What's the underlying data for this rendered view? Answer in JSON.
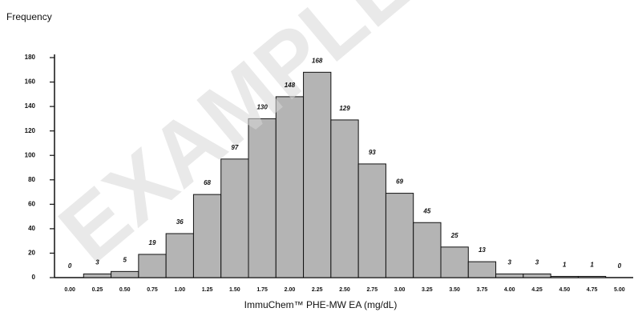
{
  "chart_data": {
    "type": "bar",
    "y_label": "Frequency",
    "x_label": "ImmuChem™ PHE-MW EA (mg/dL)",
    "watermark": "EXAMPLE",
    "categories": [
      "0.00",
      "0.25",
      "0.50",
      "0.75",
      "1.00",
      "1.25",
      "1.50",
      "1.75",
      "2.00",
      "2.25",
      "2.50",
      "2.75",
      "3.00",
      "3.25",
      "3.50",
      "3.75",
      "4.00",
      "4.25",
      "4.50",
      "4.75",
      "5.00"
    ],
    "values": [
      0,
      3,
      5,
      19,
      36,
      68,
      97,
      130,
      148,
      168,
      129,
      93,
      69,
      45,
      25,
      13,
      3,
      3,
      1,
      1,
      0
    ],
    "color": "#b4b4b4",
    "ylim": [
      0,
      180
    ],
    "yticks": [
      0,
      20,
      40,
      60,
      80,
      100,
      120,
      140,
      160,
      180
    ],
    "grid": false
  }
}
